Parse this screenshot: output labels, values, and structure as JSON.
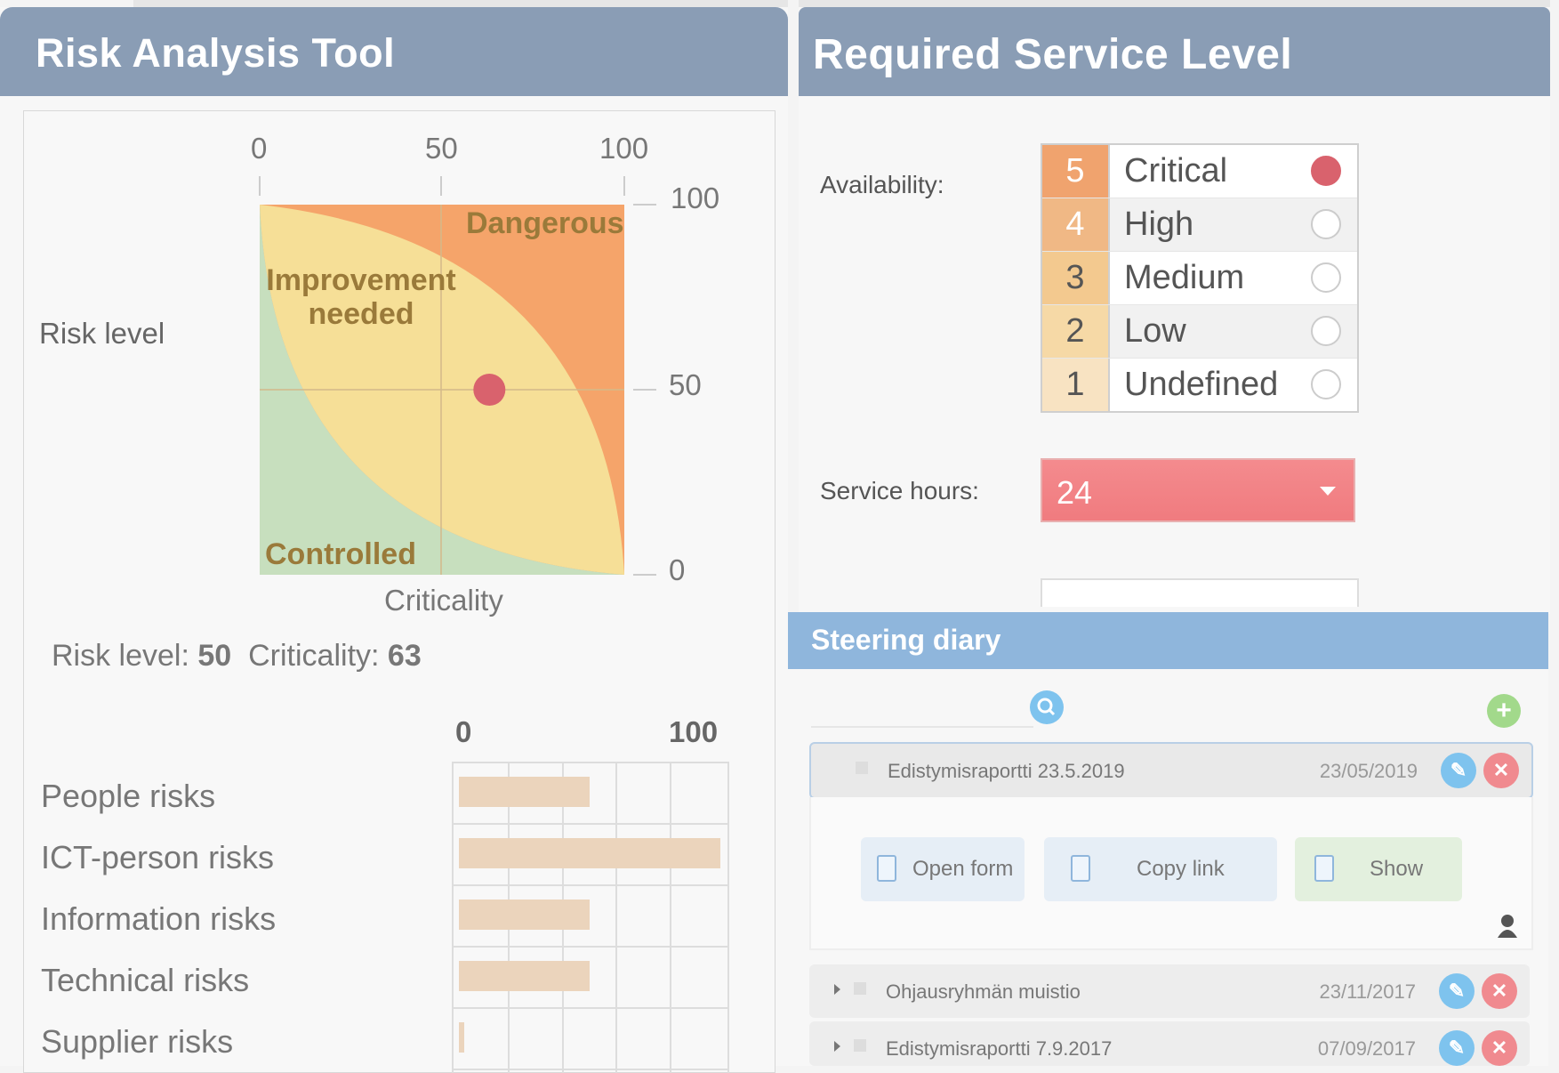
{
  "risk_tool": {
    "title": "Risk Analysis Tool",
    "y_axis_label": "Risk level",
    "x_axis_label": "Criticality",
    "x_ticks": [
      "0",
      "50",
      "100"
    ],
    "y_ticks": [
      "100",
      "50",
      "0"
    ],
    "zones": {
      "dangerous": "Dangerous",
      "improvement": "Improvement needed",
      "controlled": "Controlled"
    },
    "zone_colors": {
      "dangerous": "#f5a46a",
      "improvement": "#f6df97",
      "controlled": "#c7dfbe"
    },
    "point_color": "#d9626d",
    "summary": {
      "risk_label": "Risk level:",
      "risk_value": "50",
      "criticality_label": "Criticality:",
      "criticality_value": "63"
    },
    "bar_ticks": [
      "0",
      "100"
    ]
  },
  "chart_data": [
    {
      "type": "scatter",
      "xlabel": "Criticality",
      "ylabel": "Risk level",
      "xlim": [
        0,
        100
      ],
      "ylim": [
        0,
        100
      ],
      "points": [
        {
          "x": 63,
          "y": 50
        }
      ],
      "grid": true
    },
    {
      "type": "bar",
      "orientation": "horizontal",
      "categories": [
        "People risks",
        "ICT-person risks",
        "Information risks",
        "Technical risks",
        "Supplier risks"
      ],
      "values": [
        50,
        100,
        50,
        50,
        2
      ],
      "xlim": [
        0,
        100
      ],
      "grid": true
    }
  ],
  "service_level": {
    "title": "Required Service Level",
    "availability_label": "Availability:",
    "availability_options": [
      {
        "num": "5",
        "label": "Critical",
        "selected": true,
        "color": "#f0a36e"
      },
      {
        "num": "4",
        "label": "High",
        "selected": false,
        "color": "#f0b885"
      },
      {
        "num": "3",
        "label": "Medium",
        "selected": false,
        "color": "#f3c98f"
      },
      {
        "num": "2",
        "label": "Low",
        "selected": false,
        "color": "#f6d9a6"
      },
      {
        "num": "1",
        "label": "Undefined",
        "selected": false,
        "color": "#f8e3c2"
      }
    ],
    "service_hours_label": "Service hours:",
    "service_hours_value": "24"
  },
  "diary": {
    "title": "Steering diary",
    "entries": [
      {
        "name": "Edistymisraportti 23.5.2019",
        "date": "23/05/2019"
      },
      {
        "name": "Ohjausryhmän muistio",
        "date": "23/11/2017"
      },
      {
        "name": "Edistymisraportti 7.9.2017",
        "date": "07/09/2017"
      }
    ],
    "actions": {
      "open_form": "Open form",
      "copy_link": "Copy link",
      "show": "Show"
    }
  }
}
